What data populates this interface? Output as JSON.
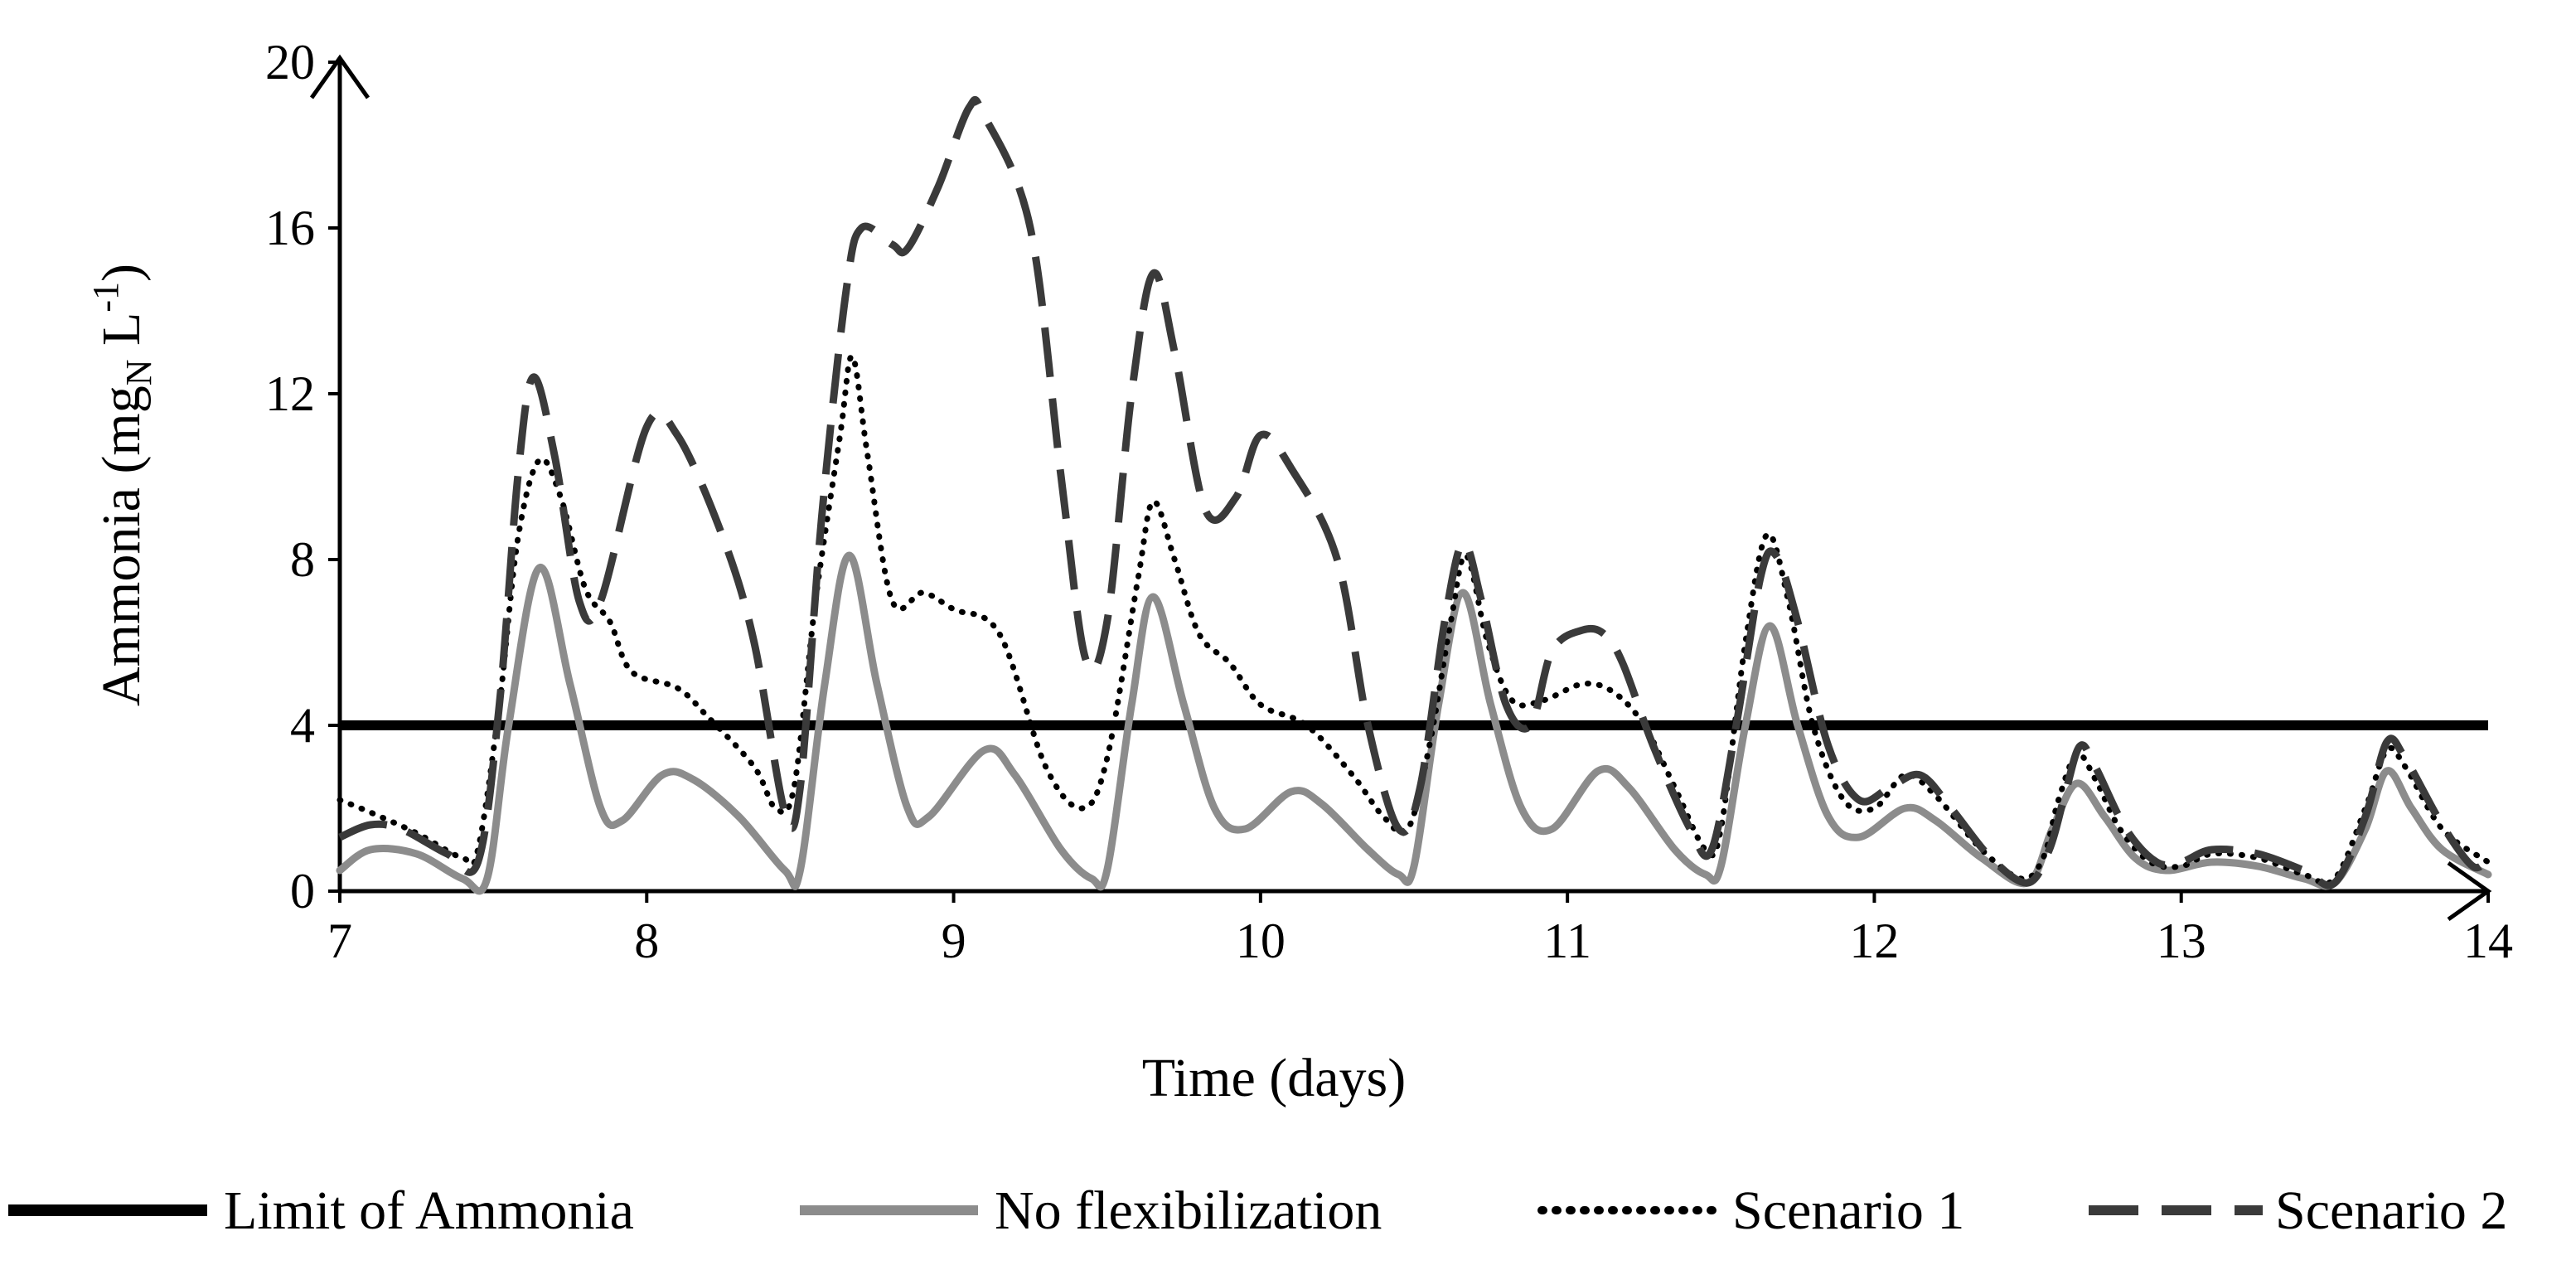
{
  "chart_data": {
    "type": "line",
    "title": "",
    "xlabel": "Time (days)",
    "ylabel": {
      "main": "Ammonia (mg",
      "sub": "N",
      "unit": " L",
      "sup": "-1",
      "close": ")"
    },
    "xlim": [
      7,
      14
    ],
    "ylim": [
      0,
      20
    ],
    "xticks": [
      "7",
      "8",
      "9",
      "10",
      "11",
      "12",
      "13",
      "14"
    ],
    "yticks": [
      "0",
      "4",
      "8",
      "12",
      "16",
      "20"
    ],
    "grid": false,
    "legend_position": "bottom",
    "series": [
      {
        "name": "Limit of Ammonia",
        "color": "#000000",
        "dash": "solid",
        "points": [
          [
            7,
            4
          ],
          [
            14,
            4
          ]
        ]
      },
      {
        "name": "No flexibilization",
        "color": "#8c8c8c",
        "dash": "solid",
        "points": [
          [
            7,
            0.5
          ],
          [
            7.1,
            1.0
          ],
          [
            7.25,
            0.9
          ],
          [
            7.4,
            0.3
          ],
          [
            7.48,
            0.3
          ],
          [
            7.55,
            4.0
          ],
          [
            7.65,
            7.8
          ],
          [
            7.75,
            5.0
          ],
          [
            7.85,
            2.0
          ],
          [
            7.92,
            1.7
          ],
          [
            8.05,
            2.8
          ],
          [
            8.15,
            2.7
          ],
          [
            8.3,
            1.8
          ],
          [
            8.45,
            0.5
          ],
          [
            8.5,
            0.5
          ],
          [
            8.58,
            5.0
          ],
          [
            8.66,
            8.1
          ],
          [
            8.75,
            5.0
          ],
          [
            8.85,
            2.0
          ],
          [
            8.92,
            1.8
          ],
          [
            9.1,
            3.4
          ],
          [
            9.2,
            2.8
          ],
          [
            9.35,
            1.0
          ],
          [
            9.45,
            0.3
          ],
          [
            9.5,
            0.5
          ],
          [
            9.58,
            4.5
          ],
          [
            9.65,
            7.1
          ],
          [
            9.75,
            4.5
          ],
          [
            9.85,
            2.0
          ],
          [
            9.95,
            1.5
          ],
          [
            10.1,
            2.4
          ],
          [
            10.2,
            2.1
          ],
          [
            10.35,
            1.0
          ],
          [
            10.45,
            0.4
          ],
          [
            10.5,
            0.6
          ],
          [
            10.58,
            4.5
          ],
          [
            10.66,
            7.2
          ],
          [
            10.75,
            4.5
          ],
          [
            10.85,
            2.0
          ],
          [
            10.95,
            1.5
          ],
          [
            11.1,
            2.9
          ],
          [
            11.2,
            2.5
          ],
          [
            11.35,
            1.0
          ],
          [
            11.45,
            0.4
          ],
          [
            11.5,
            0.6
          ],
          [
            11.58,
            4.0
          ],
          [
            11.66,
            6.4
          ],
          [
            11.75,
            4.0
          ],
          [
            11.85,
            1.8
          ],
          [
            11.95,
            1.3
          ],
          [
            12.1,
            2.0
          ],
          [
            12.2,
            1.7
          ],
          [
            12.35,
            0.8
          ],
          [
            12.5,
            0.2
          ],
          [
            12.58,
            1.5
          ],
          [
            12.66,
            2.6
          ],
          [
            12.75,
            1.8
          ],
          [
            12.85,
            0.8
          ],
          [
            12.95,
            0.5
          ],
          [
            13.1,
            0.7
          ],
          [
            13.25,
            0.6
          ],
          [
            13.4,
            0.3
          ],
          [
            13.5,
            0.2
          ],
          [
            13.6,
            1.5
          ],
          [
            13.67,
            2.9
          ],
          [
            13.75,
            2.0
          ],
          [
            13.85,
            1.0
          ],
          [
            14,
            0.4
          ]
        ]
      },
      {
        "name": "Scenario 1",
        "color": "#000000",
        "dash": "dotted",
        "points": [
          [
            7,
            2.2
          ],
          [
            7.1,
            1.9
          ],
          [
            7.25,
            1.4
          ],
          [
            7.4,
            0.8
          ],
          [
            7.45,
            1.0
          ],
          [
            7.52,
            4.5
          ],
          [
            7.58,
            8.5
          ],
          [
            7.65,
            10.4
          ],
          [
            7.72,
            9.5
          ],
          [
            7.8,
            7.3
          ],
          [
            7.88,
            6.5
          ],
          [
            7.95,
            5.3
          ],
          [
            8.1,
            4.9
          ],
          [
            8.2,
            4.2
          ],
          [
            8.35,
            3.0
          ],
          [
            8.42,
            2.0
          ],
          [
            8.48,
            2.5
          ],
          [
            8.55,
            7.0
          ],
          [
            8.63,
            11.0
          ],
          [
            8.67,
            12.9
          ],
          [
            8.72,
            10.5
          ],
          [
            8.8,
            7.0
          ],
          [
            8.9,
            7.2
          ],
          [
            9.0,
            6.8
          ],
          [
            9.15,
            6.2
          ],
          [
            9.3,
            3.0
          ],
          [
            9.42,
            2.0
          ],
          [
            9.5,
            3.2
          ],
          [
            9.6,
            7.5
          ],
          [
            9.65,
            9.4
          ],
          [
            9.72,
            8.0
          ],
          [
            9.8,
            6.2
          ],
          [
            9.9,
            5.5
          ],
          [
            10.0,
            4.5
          ],
          [
            10.15,
            4.0
          ],
          [
            10.3,
            2.8
          ],
          [
            10.4,
            1.8
          ],
          [
            10.48,
            1.5
          ],
          [
            10.55,
            3.5
          ],
          [
            10.62,
            6.5
          ],
          [
            10.67,
            8.1
          ],
          [
            10.74,
            6.0
          ],
          [
            10.82,
            4.6
          ],
          [
            10.92,
            4.6
          ],
          [
            11.05,
            5.0
          ],
          [
            11.15,
            4.8
          ],
          [
            11.25,
            4.0
          ],
          [
            11.35,
            2.5
          ],
          [
            11.45,
            1.0
          ],
          [
            11.5,
            1.5
          ],
          [
            11.58,
            6.0
          ],
          [
            11.65,
            8.6
          ],
          [
            11.72,
            7.0
          ],
          [
            11.8,
            4.0
          ],
          [
            11.9,
            2.2
          ],
          [
            12.0,
            2.0
          ],
          [
            12.1,
            2.8
          ],
          [
            12.2,
            2.3
          ],
          [
            12.35,
            1.0
          ],
          [
            12.48,
            0.3
          ],
          [
            12.55,
            0.8
          ],
          [
            12.6,
            2.2
          ],
          [
            12.66,
            3.3
          ],
          [
            12.72,
            2.7
          ],
          [
            12.8,
            1.5
          ],
          [
            12.9,
            0.7
          ],
          [
            13.0,
            0.6
          ],
          [
            13.1,
            0.9
          ],
          [
            13.25,
            0.8
          ],
          [
            13.4,
            0.4
          ],
          [
            13.5,
            0.3
          ],
          [
            13.6,
            2.0
          ],
          [
            13.67,
            3.4
          ],
          [
            13.73,
            3.0
          ],
          [
            13.85,
            1.5
          ],
          [
            14,
            0.7
          ]
        ]
      },
      {
        "name": "Scenario 2",
        "color": "#3a3a3a",
        "dash": "dashed",
        "points": [
          [
            7,
            1.3
          ],
          [
            7.1,
            1.6
          ],
          [
            7.2,
            1.5
          ],
          [
            7.35,
            0.9
          ],
          [
            7.45,
            0.7
          ],
          [
            7.52,
            4.5
          ],
          [
            7.58,
            10.0
          ],
          [
            7.63,
            12.4
          ],
          [
            7.7,
            10.5
          ],
          [
            7.78,
            7.0
          ],
          [
            7.85,
            7.0
          ],
          [
            8.0,
            11.2
          ],
          [
            8.1,
            11.0
          ],
          [
            8.25,
            8.5
          ],
          [
            8.35,
            6.0
          ],
          [
            8.45,
            1.9
          ],
          [
            8.5,
            2.5
          ],
          [
            8.57,
            9.0
          ],
          [
            8.65,
            14.5
          ],
          [
            8.7,
            16.0
          ],
          [
            8.8,
            15.6
          ],
          [
            8.85,
            15.5
          ],
          [
            8.95,
            17.0
          ],
          [
            9.05,
            18.9
          ],
          [
            9.1,
            18.7
          ],
          [
            9.25,
            16.0
          ],
          [
            9.35,
            10.0
          ],
          [
            9.43,
            5.6
          ],
          [
            9.5,
            6.5
          ],
          [
            9.58,
            12.0
          ],
          [
            9.65,
            14.9
          ],
          [
            9.72,
            13.0
          ],
          [
            9.82,
            9.2
          ],
          [
            9.92,
            9.5
          ],
          [
            10.0,
            11.0
          ],
          [
            10.1,
            10.2
          ],
          [
            10.25,
            8.0
          ],
          [
            10.35,
            4.0
          ],
          [
            10.45,
            1.5
          ],
          [
            10.52,
            2.5
          ],
          [
            10.6,
            6.5
          ],
          [
            10.66,
            8.4
          ],
          [
            10.72,
            7.0
          ],
          [
            10.8,
            4.5
          ],
          [
            10.88,
            4.0
          ],
          [
            10.95,
            5.8
          ],
          [
            11.05,
            6.3
          ],
          [
            11.12,
            6.2
          ],
          [
            11.18,
            5.5
          ],
          [
            11.28,
            3.5
          ],
          [
            11.4,
            1.5
          ],
          [
            11.47,
            1.0
          ],
          [
            11.55,
            4.0
          ],
          [
            11.63,
            7.6
          ],
          [
            11.68,
            8.1
          ],
          [
            11.75,
            6.5
          ],
          [
            11.85,
            3.5
          ],
          [
            11.95,
            2.2
          ],
          [
            12.05,
            2.5
          ],
          [
            12.15,
            2.8
          ],
          [
            12.25,
            2.0
          ],
          [
            12.38,
            0.8
          ],
          [
            12.5,
            0.2
          ],
          [
            12.57,
            1.0
          ],
          [
            12.62,
            2.3
          ],
          [
            12.67,
            3.5
          ],
          [
            12.72,
            3.0
          ],
          [
            12.82,
            1.5
          ],
          [
            12.92,
            0.7
          ],
          [
            13.0,
            0.7
          ],
          [
            13.1,
            1.0
          ],
          [
            13.25,
            0.9
          ],
          [
            13.4,
            0.5
          ],
          [
            13.5,
            0.2
          ],
          [
            13.6,
            1.8
          ],
          [
            13.67,
            3.6
          ],
          [
            13.73,
            3.2
          ],
          [
            13.85,
            1.6
          ],
          [
            13.95,
            0.6
          ],
          [
            14,
            0.8
          ]
        ]
      }
    ]
  }
}
